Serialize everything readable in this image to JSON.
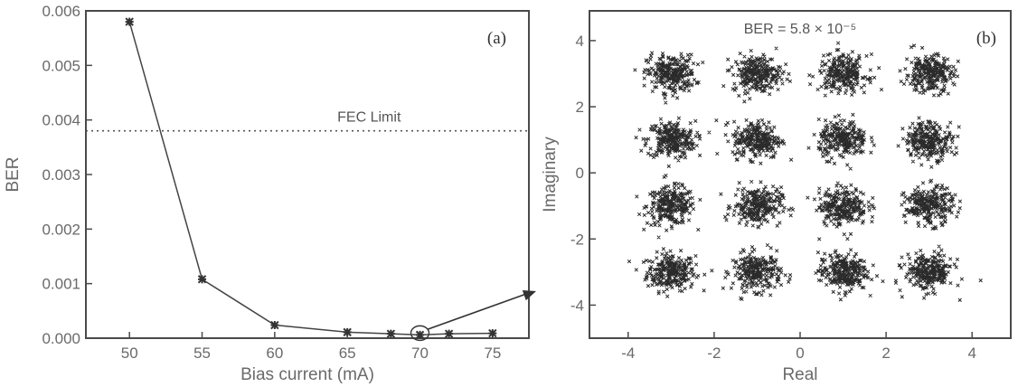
{
  "chart_data": [
    {
      "type": "line",
      "panel_label": "(a)",
      "xlabel": "Bias current (mA)",
      "ylabel": "BER",
      "xlim": [
        47,
        77.5
      ],
      "ylim": [
        0,
        0.006
      ],
      "x_ticks": [
        50,
        55,
        60,
        65,
        70,
        75
      ],
      "x_tick_labels": [
        "50",
        "55",
        "60",
        "65",
        "70",
        "75"
      ],
      "y_ticks": [
        0,
        0.001,
        0.002,
        0.003,
        0.004,
        0.005,
        0.006
      ],
      "y_tick_labels": [
        "0.000",
        "0.001",
        "0.002",
        "0.003",
        "0.004",
        "0.005",
        "0.006"
      ],
      "series": [
        {
          "x": [
            50,
            55,
            60,
            65,
            68,
            70,
            72,
            75
          ],
          "values": [
            0.0058,
            0.00108,
            0.00024,
            0.00011,
            8e-05,
            6e-05,
            8e-05,
            9e-05
          ]
        }
      ],
      "reference_line": {
        "label": "FEC Limit",
        "value": 0.0038
      },
      "highlight_x": 70,
      "grid": false,
      "color": "#444444"
    },
    {
      "type": "scatter",
      "panel_label": "(b)",
      "annotation": "BER = 5.8 × 10⁻⁵",
      "xlabel": "Real",
      "ylabel": "Imaginary",
      "xlim": [
        -4.9,
        4.9
      ],
      "ylim": [
        -5,
        4.9
      ],
      "x_ticks": [
        -4,
        -2,
        0,
        2,
        4
      ],
      "x_tick_labels": [
        "-4",
        "-2",
        "0",
        "2",
        "4"
      ],
      "y_ticks": [
        -4,
        -2,
        0,
        2,
        4
      ],
      "y_tick_labels": [
        "-4",
        "-2",
        "0",
        "2",
        "4"
      ],
      "constellation_levels": [
        -3,
        -1,
        1,
        3
      ],
      "cluster_spread": 0.28,
      "points_per_cluster": 260,
      "grid": false,
      "color": "#2a2a2a"
    }
  ]
}
